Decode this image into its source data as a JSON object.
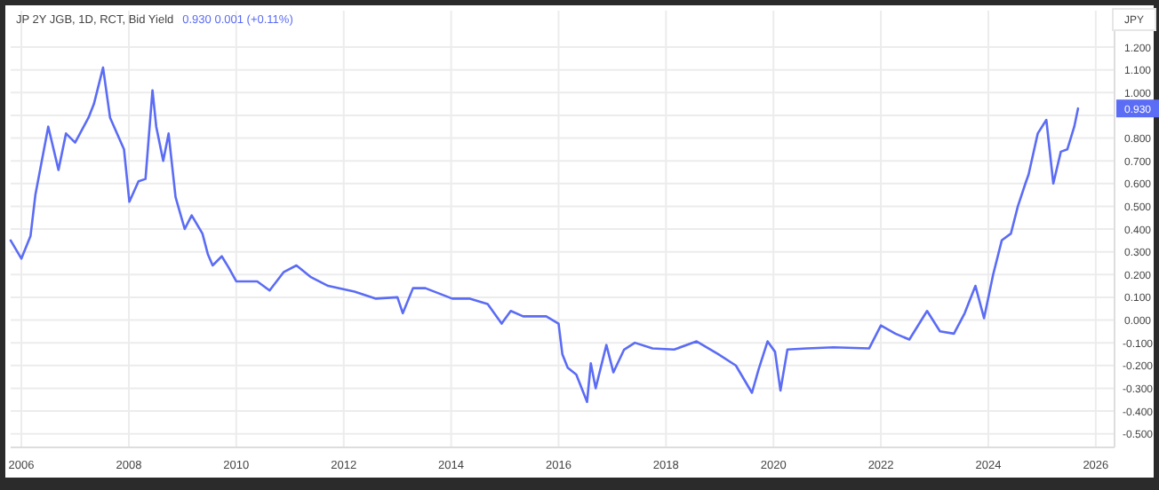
{
  "chart_data": {
    "type": "line",
    "title": "JP 2Y JGB, 1D, RCT, Bid Yield",
    "subtitle": "0.930  0.001 (+0.11%)",
    "ylabel": "JPY",
    "annotations": [
      "0.930"
    ],
    "xlim": [
      2005.8,
      2026.35
    ],
    "xticks": [
      2006,
      2008,
      2010,
      2012,
      2014,
      2016,
      2018,
      2020,
      2022,
      2024,
      2026
    ],
    "ylim": [
      -0.56,
      1.36
    ],
    "yticks": [
      {
        "value": -0.5,
        "label": "-0.500"
      },
      {
        "value": -0.4,
        "label": "-0.400"
      },
      {
        "value": -0.3,
        "label": "-0.300"
      },
      {
        "value": -0.2,
        "label": "-0.200"
      },
      {
        "value": -0.1,
        "label": "-0.100"
      },
      {
        "value": 0,
        "label": "0.000"
      },
      {
        "value": 0.1,
        "label": "0.100"
      },
      {
        "value": 0.2,
        "label": "0.200"
      },
      {
        "value": 0.3,
        "label": "0.300"
      },
      {
        "value": 0.4,
        "label": "0.400"
      },
      {
        "value": 0.5,
        "label": "0.500"
      },
      {
        "value": 0.6,
        "label": "0.600"
      },
      {
        "value": 0.7,
        "label": "0.700"
      },
      {
        "value": 0.8,
        "label": "0.800"
      },
      {
        "value": 0.9,
        "label": null
      },
      {
        "value": 1,
        "label": "1.000"
      },
      {
        "value": 1.1,
        "label": "1.100"
      },
      {
        "value": 1.2,
        "label": "1.200"
      }
    ],
    "grid": true,
    "marker": "none",
    "line_style": "solid",
    "series": [
      {
        "color": "#5b6cf5",
        "x": [
          2005.8,
          2006.0,
          2006.17,
          2006.26,
          2006.5,
          2006.69,
          2006.83,
          2007.0,
          2007.25,
          2007.35,
          2007.52,
          2007.65,
          2007.91,
          2008.01,
          2008.18,
          2008.31,
          2008.44,
          2008.51,
          2008.64,
          2008.74,
          2008.87,
          2009.04,
          2009.17,
          2009.37,
          2009.47,
          2009.56,
          2009.73,
          2009.86,
          2010.0,
          2010.39,
          2010.62,
          2010.88,
          2011.12,
          2011.38,
          2011.71,
          2012.2,
          2012.6,
          2013.0,
          2013.1,
          2013.29,
          2013.52,
          2014.02,
          2014.35,
          2014.68,
          2014.94,
          2015.11,
          2015.34,
          2015.77,
          2016.0,
          2016.07,
          2016.17,
          2016.33,
          2016.53,
          2016.6,
          2016.69,
          2016.89,
          2017.02,
          2017.22,
          2017.42,
          2017.75,
          2018.15,
          2018.57,
          2018.97,
          2019.3,
          2019.6,
          2019.72,
          2019.89,
          2020.03,
          2020.13,
          2020.26,
          2020.62,
          2021.12,
          2021.78,
          2022.0,
          2022.27,
          2022.53,
          2022.86,
          2023.1,
          2023.36,
          2023.56,
          2023.76,
          2023.92,
          2024.09,
          2024.25,
          2024.42,
          2024.55,
          2024.69,
          2024.75,
          2024.92,
          2025.08,
          2025.21,
          2025.35,
          2025.47,
          2025.6,
          2025.67
        ],
        "values": [
          0.35,
          0.27,
          0.37,
          0.55,
          0.85,
          0.66,
          0.82,
          0.78,
          0.89,
          0.95,
          1.11,
          0.89,
          0.75,
          0.52,
          0.61,
          0.62,
          1.01,
          0.85,
          0.7,
          0.82,
          0.54,
          0.4,
          0.46,
          0.38,
          0.29,
          0.24,
          0.28,
          0.23,
          0.17,
          0.17,
          0.13,
          0.21,
          0.24,
          0.19,
          0.15,
          0.125,
          0.094,
          0.1,
          0.03,
          0.14,
          0.14,
          0.094,
          0.094,
          0.07,
          -0.016,
          0.04,
          0.016,
          0.016,
          -0.016,
          -0.15,
          -0.21,
          -0.24,
          -0.36,
          -0.19,
          -0.3,
          -0.11,
          -0.23,
          -0.13,
          -0.1,
          -0.125,
          -0.13,
          -0.094,
          -0.15,
          -0.2,
          -0.32,
          -0.22,
          -0.094,
          -0.14,
          -0.31,
          -0.13,
          -0.125,
          -0.12,
          -0.125,
          -0.024,
          -0.06,
          -0.086,
          0.04,
          -0.05,
          -0.06,
          0.03,
          0.15,
          0.008,
          0.2,
          0.35,
          0.38,
          0.5,
          0.6,
          0.64,
          0.82,
          0.88,
          0.6,
          0.74,
          0.75,
          0.85,
          0.93
        ]
      }
    ]
  }
}
